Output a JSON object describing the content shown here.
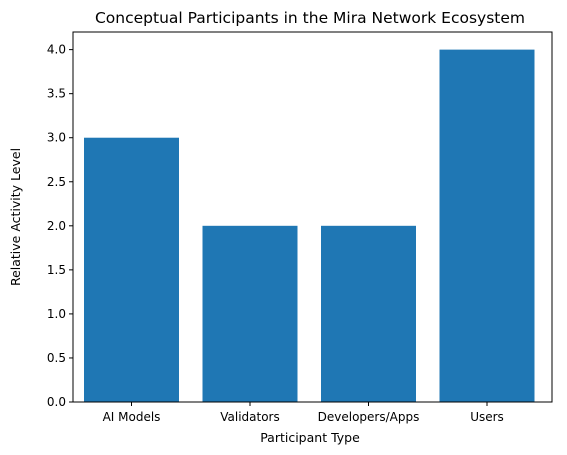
{
  "chart_data": {
    "type": "bar",
    "title": "Conceptual Participants in the Mira Network Ecosystem",
    "xlabel": "Participant Type",
    "ylabel": "Relative Activity Level",
    "categories": [
      "AI Models",
      "Validators",
      "Developers/Apps",
      "Users"
    ],
    "values": [
      3,
      2,
      2,
      4
    ],
    "ylim": [
      0,
      4.2
    ],
    "yticks": [
      "0.0",
      "0.5",
      "1.0",
      "1.5",
      "2.0",
      "2.5",
      "3.0",
      "3.5",
      "4.0"
    ],
    "bar_color": "#1f77b4",
    "grid": false
  }
}
